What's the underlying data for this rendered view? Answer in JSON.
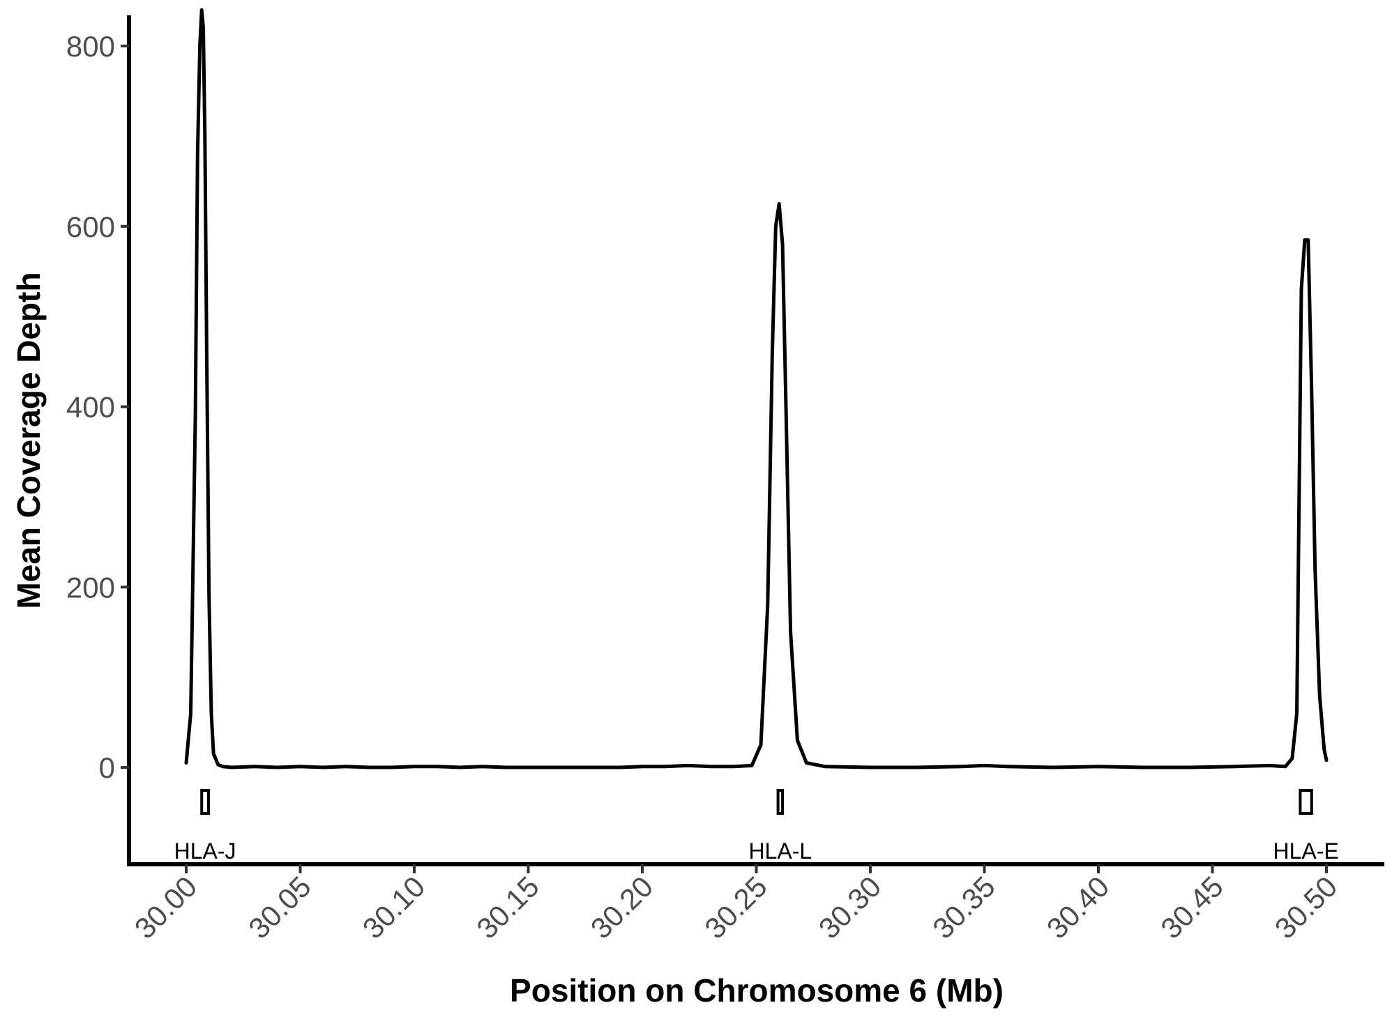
{
  "chart_data": {
    "type": "line",
    "title": "",
    "xlabel": "Position on Chromosome 6 (Mb)",
    "ylabel": "Mean Coverage Depth",
    "xlim": [
      29.975,
      30.535
    ],
    "ylim": [
      -110,
      835
    ],
    "x_ticks": [
      "30.00",
      "30.05",
      "30.10",
      "30.15",
      "30.20",
      "30.25",
      "30.30",
      "30.35",
      "30.40",
      "30.45",
      "30.50"
    ],
    "y_ticks": [
      "0",
      "200",
      "400",
      "600",
      "800"
    ],
    "grid": false,
    "legend": "none",
    "line_color": "#000000",
    "series": [
      {
        "x": [
          30.0,
          30.002,
          30.004,
          30.005,
          30.006,
          30.0068,
          30.0075,
          30.0082,
          30.009,
          30.01,
          30.011,
          30.012,
          30.014,
          30.016,
          30.02,
          30.03,
          30.04,
          30.05,
          30.06,
          30.07,
          30.08,
          30.09,
          30.1,
          30.11,
          30.12,
          30.13,
          30.14,
          30.15,
          30.16,
          30.17,
          30.18,
          30.19,
          30.2,
          30.21,
          30.22,
          30.23,
          30.24,
          30.248,
          30.252,
          30.255,
          30.257,
          30.2585,
          30.26,
          30.2615,
          30.263,
          30.265,
          30.268,
          30.272,
          30.28,
          30.3,
          30.32,
          30.34,
          30.35,
          30.36,
          30.38,
          30.4,
          30.42,
          30.44,
          30.46,
          30.475,
          30.482,
          30.485,
          30.487,
          30.488,
          30.489,
          30.4905,
          30.492,
          30.4935,
          30.495,
          30.497,
          30.499,
          30.5
        ],
        "y": [
          5,
          60,
          390,
          680,
          800,
          840,
          820,
          700,
          460,
          190,
          60,
          15,
          3,
          1,
          0,
          1,
          0,
          1,
          0,
          1,
          0,
          0,
          1,
          1,
          0,
          1,
          0,
          0,
          0,
          0,
          0,
          0,
          1,
          1,
          2,
          1,
          1,
          2,
          25,
          180,
          460,
          600,
          625,
          580,
          400,
          150,
          30,
          5,
          1,
          0,
          0,
          1,
          2,
          1,
          0,
          1,
          0,
          0,
          1,
          2,
          1,
          10,
          60,
          300,
          530,
          585,
          585,
          420,
          220,
          80,
          20,
          8
        ]
      }
    ],
    "genes": [
      {
        "name": "HLA-J",
        "start": 30.0068,
        "end": 30.0098
      },
      {
        "name": "HLA-L",
        "start": 30.2595,
        "end": 30.2615
      },
      {
        "name": "HLA-E",
        "start": 30.4885,
        "end": 30.4935
      }
    ]
  }
}
